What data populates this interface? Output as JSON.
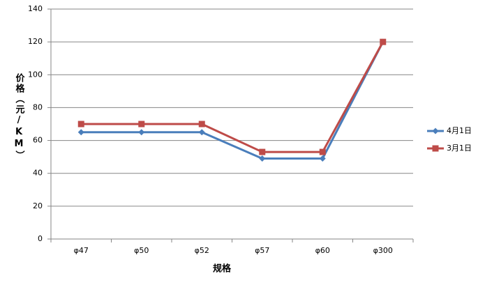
{
  "chart_data": {
    "type": "line",
    "categories": [
      "φ47",
      "φ50",
      "φ52",
      "φ57",
      "φ60",
      "φ300"
    ],
    "series": [
      {
        "name": "4月1日",
        "color": "#4a7ebb",
        "marker": "diamond",
        "values": [
          65,
          65,
          65,
          49,
          49,
          120
        ]
      },
      {
        "name": "3月1日",
        "color": "#be4b48",
        "marker": "square",
        "values": [
          70,
          70,
          70,
          53,
          53,
          120
        ]
      }
    ],
    "xlabel": "规格",
    "ylabel": "价格（元/KM）",
    "ylim": [
      0,
      140
    ],
    "yticks": [
      0,
      20,
      40,
      60,
      80,
      100,
      120,
      140
    ],
    "grid": true,
    "legend": "right"
  }
}
